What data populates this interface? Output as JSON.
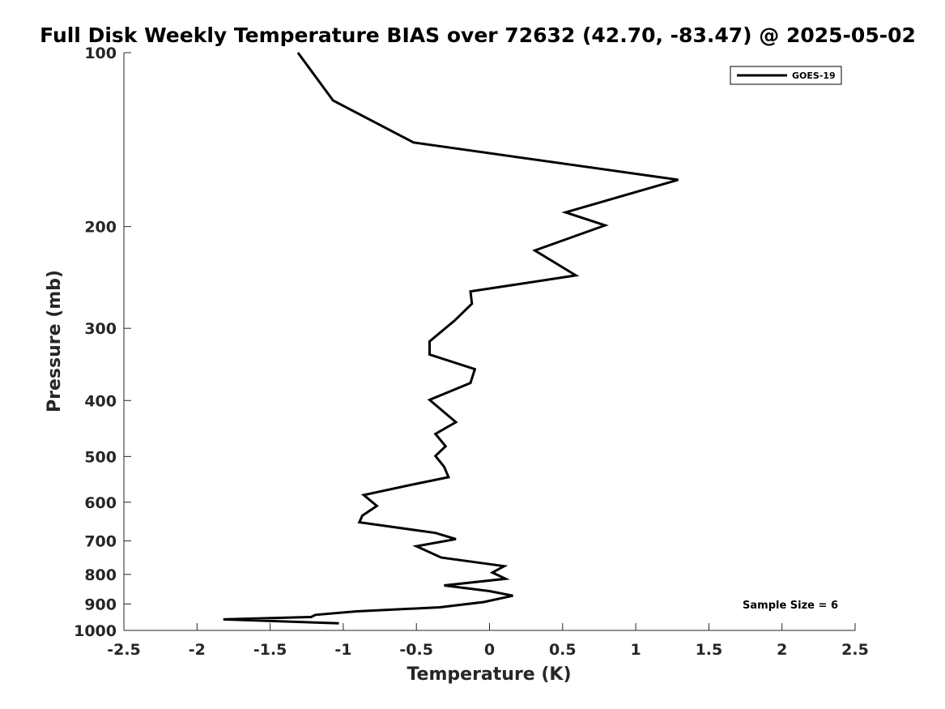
{
  "chart_data": {
    "type": "line",
    "title": "Full Disk Weekly Temperature BIAS over 72632 (42.70, -83.47) @ 2025-05-02",
    "xlabel": "Temperature (K)",
    "ylabel": "Pressure (mb)",
    "xlim": [
      -2.5,
      2.5
    ],
    "ylim": [
      100,
      1000
    ],
    "yscale": "log",
    "y_reversed": true,
    "grid": false,
    "legend_position": "top-right",
    "x_ticks": [
      -2.5,
      -2,
      -1.5,
      -1,
      -0.5,
      0,
      0.5,
      1,
      1.5,
      2,
      2.5
    ],
    "x_tick_labels": [
      "-2.5",
      "-2",
      "-1.5",
      "-1",
      "-0.5",
      "0",
      "0.5",
      "1",
      "1.5",
      "2",
      "2.5"
    ],
    "y_ticks": [
      100,
      200,
      300,
      400,
      500,
      600,
      700,
      800,
      900,
      1000
    ],
    "y_tick_labels": [
      "100",
      "200",
      "300",
      "400",
      "500",
      "600",
      "700",
      "800",
      "900",
      "1000"
    ],
    "series": [
      {
        "name": "GOES-19",
        "color": "#000000",
        "x": [
          -1.31,
          -1.07,
          -0.52,
          1.29,
          0.52,
          0.79,
          0.31,
          0.59,
          -0.13,
          -0.12,
          -0.24,
          -0.41,
          -0.41,
          -0.1,
          -0.13,
          -0.41,
          -0.23,
          -0.37,
          -0.3,
          -0.37,
          -0.31,
          -0.28,
          -0.54,
          -0.86,
          -0.77,
          -0.87,
          -0.89,
          -0.37,
          -0.23,
          -0.5,
          -0.33,
          0.1,
          0.02,
          0.11,
          -0.31,
          0,
          0.16,
          -0.04,
          -0.34,
          -0.91,
          -1.19,
          -1.22,
          -1.82,
          -1.03
        ],
        "y": [
          100,
          121,
          143,
          166,
          189,
          199,
          220,
          243,
          259,
          272,
          291,
          316,
          333,
          353,
          373,
          399,
          436,
          457,
          480,
          499,
          521,
          543,
          560,
          583,
          609,
          633,
          650,
          678,
          695,
          715,
          748,
          774,
          794,
          814,
          836,
          855,
          871,
          893,
          912,
          927,
          940,
          948,
          957,
          972
        ]
      }
    ],
    "annotations": [
      "Sample Size = 6"
    ]
  }
}
